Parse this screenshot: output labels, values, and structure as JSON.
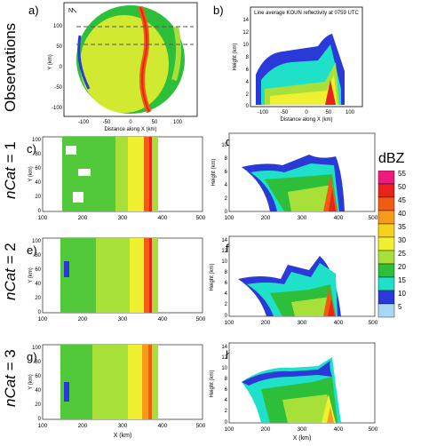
{
  "row_labels": {
    "obs": "Observations",
    "ncat1": "nCat = 1",
    "ncat2": "nCat = 2",
    "ncat3": "nCat = 3",
    "ncat_var": "nCat",
    "eq1": " = 1",
    "eq2": " = 2",
    "eq3": " = 3"
  },
  "panels": {
    "a": {
      "letter": "a)",
      "xlabel": "Distance along X (km)",
      "ylabel": "Y (km)",
      "xticks": [
        "-100",
        "-50",
        "0",
        "50",
        "100"
      ],
      "yticks": [
        "100",
        "50",
        "0",
        "-50",
        "-100"
      ],
      "marker": "N"
    },
    "b": {
      "letter": "b)",
      "title": "Line average KOUN reflectivity at 0759 UTC",
      "xlabel": "Distance along X (km)",
      "ylabel": "Height (km)",
      "xticks": [
        "-100",
        "-50",
        "0",
        "50",
        "100"
      ],
      "yticks": [
        "14",
        "12",
        "10",
        "8",
        "6",
        "4",
        "2",
        "0"
      ]
    },
    "c": {
      "letter": "c)",
      "ylabel": "Y (km)",
      "xticks": [
        "100",
        "200",
        "300",
        "400",
        "500"
      ],
      "yticks": [
        "100",
        "80",
        "60",
        "40",
        "20",
        "0"
      ]
    },
    "d": {
      "letter": "d)",
      "ylabel": "Height (km)",
      "xticks": [
        "100",
        "200",
        "300",
        "400",
        "500"
      ],
      "yticks": [
        "10",
        "8",
        "6",
        "4",
        "2",
        "0"
      ]
    },
    "e": {
      "letter": "e)",
      "ylabel": "Y (km)",
      "xticks": [
        "100",
        "200",
        "300",
        "400",
        "500"
      ],
      "yticks": [
        "100",
        "80",
        "60",
        "40",
        "20",
        "0"
      ]
    },
    "f": {
      "letter": "f)",
      "ylabel": "Height (km)",
      "xticks": [
        "100",
        "200",
        "300",
        "400",
        "500"
      ],
      "yticks": [
        "14",
        "12",
        "10",
        "8",
        "6",
        "4",
        "2",
        "0"
      ]
    },
    "g": {
      "letter": "g)",
      "xlabel": "X (km)",
      "ylabel": "Y (km)",
      "xticks": [
        "100",
        "200",
        "300",
        "400",
        "500"
      ],
      "yticks": [
        "100",
        "80",
        "60",
        "40",
        "20",
        "0"
      ]
    },
    "h": {
      "letter": "h)",
      "xlabel": "X (km)",
      "ylabel": "Height (km)",
      "xticks": [
        "100",
        "200",
        "300",
        "400",
        "500"
      ],
      "yticks": [
        "14",
        "12",
        "10",
        "8",
        "6",
        "4",
        "2",
        "0"
      ]
    }
  },
  "colorbar": {
    "title": "dBZ",
    "labels": [
      "55",
      "50",
      "45",
      "40",
      "35",
      "30",
      "25",
      "20",
      "15",
      "10",
      "5"
    ],
    "colors": [
      "#f0197d",
      "#e8231c",
      "#f25c12",
      "#f89a1a",
      "#f5d21e",
      "#eef030",
      "#a8e03a",
      "#2dbf3a",
      "#1fe0c8",
      "#2a3ad8",
      "#a8d8f4"
    ]
  }
}
